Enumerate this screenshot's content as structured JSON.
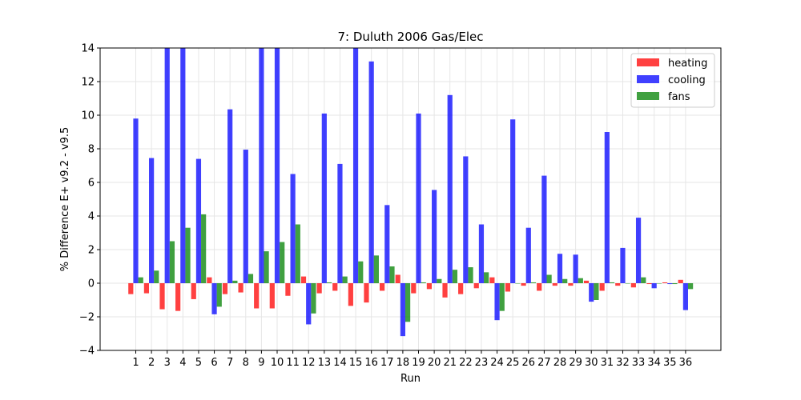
{
  "chart_data": {
    "type": "bar",
    "title": "7: Duluth 2006 Gas/Elec",
    "xlabel": "Run",
    "ylabel": "% Difference E+ v9.2 - v9.5",
    "ylim": [
      -4,
      14
    ],
    "yticks": [
      -4,
      -2,
      0,
      2,
      4,
      6,
      8,
      10,
      12,
      14
    ],
    "grid": true,
    "legend_position": "top-right",
    "categories": [
      "1",
      "2",
      "3",
      "4",
      "5",
      "6",
      "7",
      "8",
      "9",
      "10",
      "11",
      "12",
      "13",
      "14",
      "15",
      "16",
      "17",
      "18",
      "19",
      "20",
      "21",
      "22",
      "23",
      "24",
      "25",
      "26",
      "27",
      "28",
      "29",
      "30",
      "31",
      "32",
      "33",
      "34",
      "35",
      "36"
    ],
    "series": [
      {
        "name": "heating",
        "color": "#ff0000",
        "values": [
          -0.65,
          -0.6,
          -1.55,
          -1.65,
          -0.95,
          0.35,
          -0.65,
          -0.55,
          -1.5,
          -1.5,
          -0.75,
          0.4,
          -0.6,
          -0.45,
          -1.35,
          -1.15,
          -0.45,
          0.5,
          -0.6,
          -0.35,
          -0.85,
          -0.65,
          -0.3,
          0.35,
          -0.5,
          -0.15,
          -0.45,
          -0.15,
          -0.15,
          0.15,
          -0.45,
          -0.15,
          -0.25,
          -0.05,
          0.05,
          0.2
        ]
      },
      {
        "name": "cooling",
        "color": "#0000ff",
        "values": [
          9.8,
          7.45,
          14.0,
          14.0,
          7.4,
          -1.85,
          10.35,
          7.95,
          14.0,
          14.0,
          6.5,
          -2.45,
          10.1,
          7.1,
          14.0,
          13.2,
          4.65,
          -3.15,
          10.1,
          5.55,
          11.2,
          7.55,
          3.5,
          -2.2,
          9.75,
          3.3,
          6.4,
          1.75,
          1.7,
          -1.1,
          9.0,
          2.1,
          3.9,
          -0.3,
          -0.05,
          -1.6
        ]
      },
      {
        "name": "fans",
        "color": "#008000",
        "values": [
          0.35,
          0.75,
          2.5,
          3.3,
          4.1,
          -1.4,
          0.15,
          0.55,
          1.9,
          2.45,
          3.5,
          -1.8,
          0.05,
          0.4,
          1.3,
          1.65,
          1.0,
          -2.3,
          0.05,
          0.25,
          0.8,
          0.95,
          0.65,
          -1.65,
          0.0,
          0.05,
          0.5,
          0.25,
          0.3,
          -1.0,
          0.05,
          0.0,
          0.35,
          0.0,
          -0.05,
          -0.35
        ]
      }
    ]
  }
}
